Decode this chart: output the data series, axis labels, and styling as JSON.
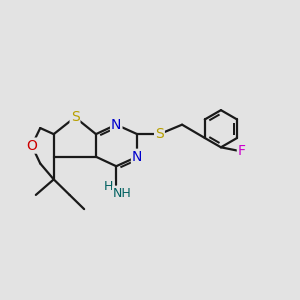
{
  "bg": "#e3e3e3",
  "bond_color": "#1a1a1a",
  "bond_lw": 1.6,
  "S1_color": "#b8a000",
  "O_color": "#cc0000",
  "N_color": "#0000cc",
  "S2_color": "#b8a000",
  "F_color": "#cc00cc",
  "NH_color": "#006060",
  "xlim": [
    -0.3,
    8.5
  ],
  "ylim": [
    3.0,
    7.5
  ],
  "figsize": [
    3.0,
    3.0
  ],
  "dpi": 100
}
